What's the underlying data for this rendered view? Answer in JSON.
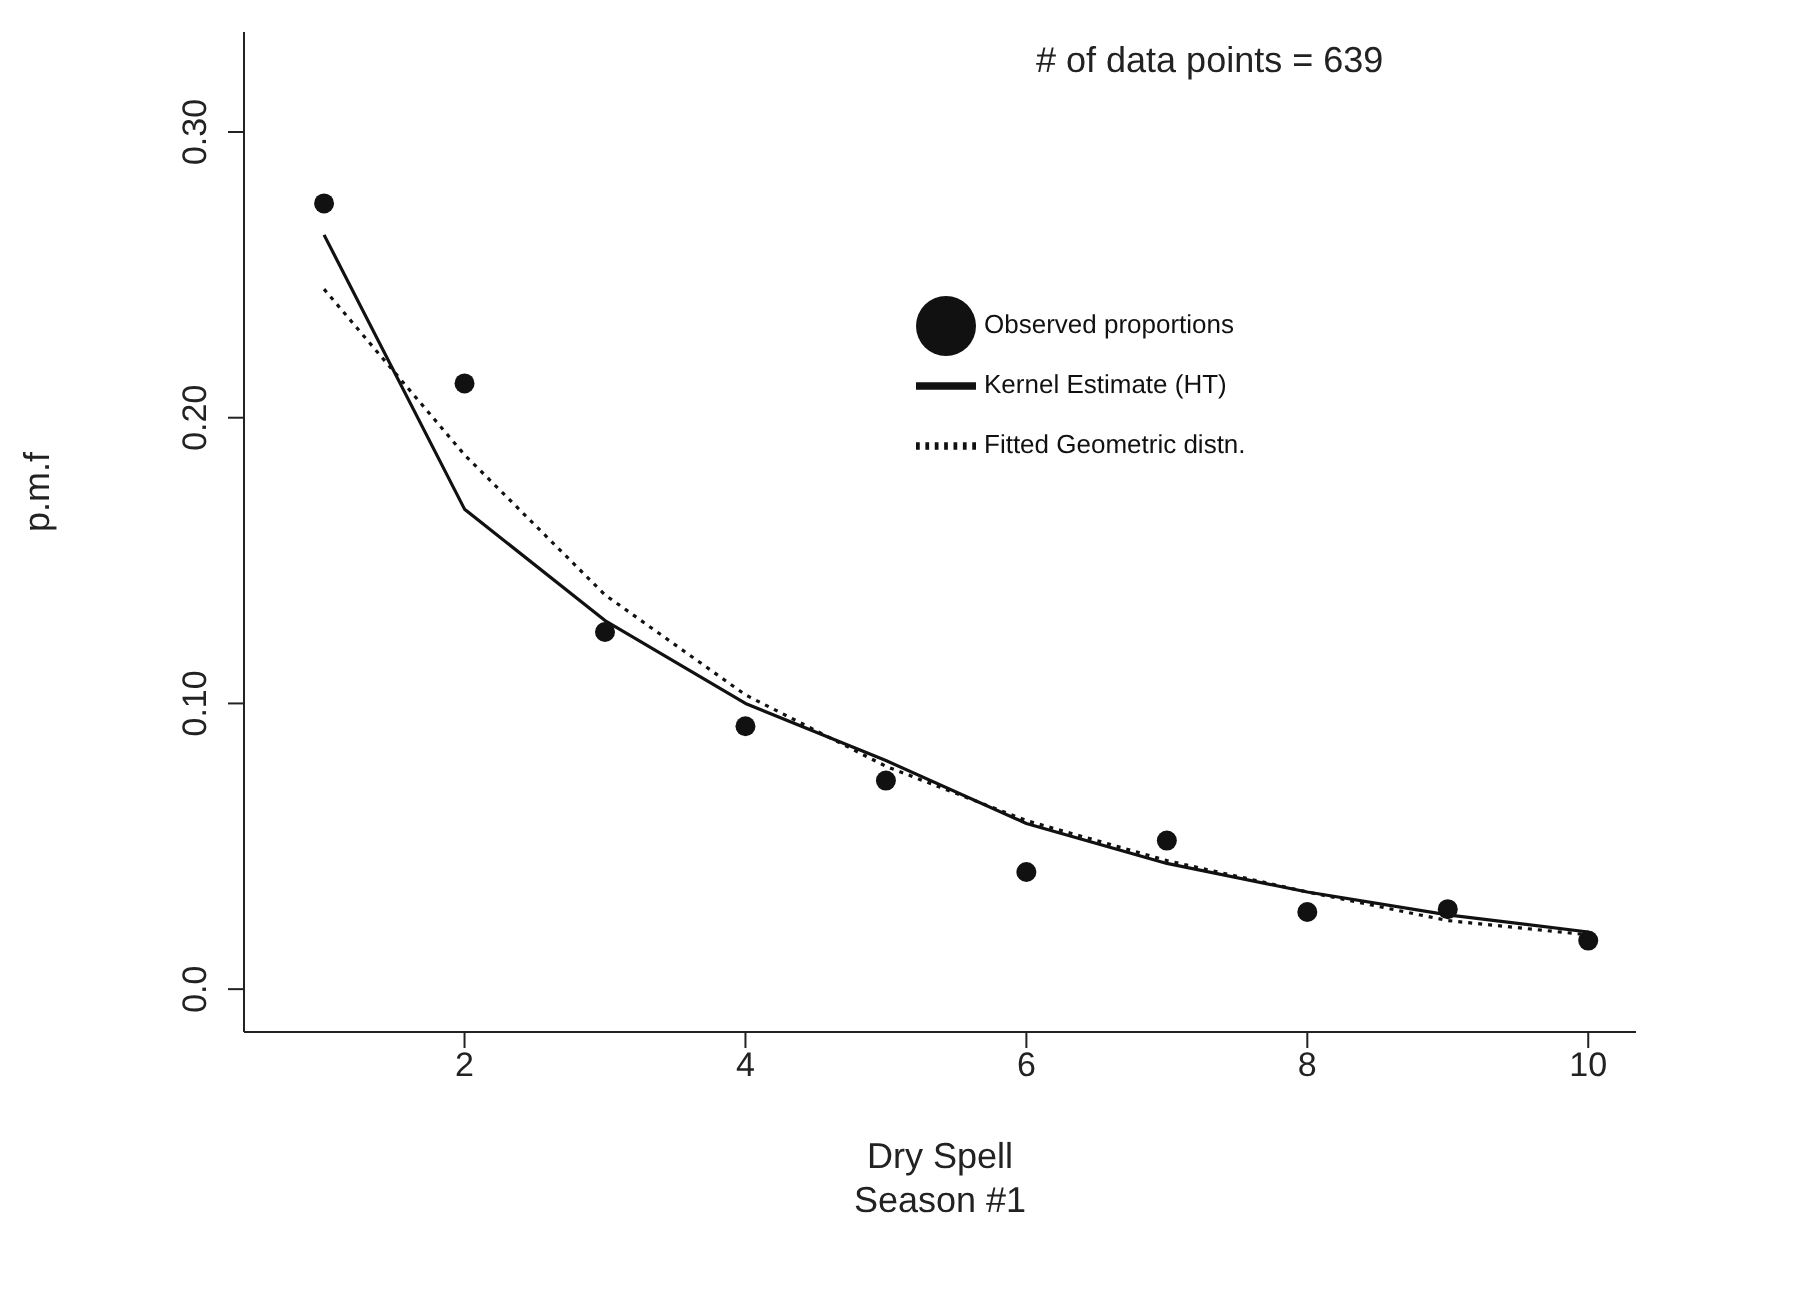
{
  "chart_data": {
    "type": "scatter",
    "xlabel": "Dry Spell\nSeason #1",
    "ylabel": "p.m.f",
    "annotations": [
      "# of data points = 639"
    ],
    "x": [
      1,
      2,
      3,
      4,
      5,
      6,
      7,
      8,
      9,
      10
    ],
    "series": [
      {
        "name": "Observed proportions",
        "type": "scatter",
        "color": "#111111",
        "marker": "circle",
        "values": [
          0.275,
          0.212,
          0.125,
          0.092,
          0.073,
          0.041,
          0.052,
          0.027,
          0.028,
          0.017
        ]
      },
      {
        "name": "Kernel Estimate (HT)",
        "type": "line",
        "color": "#111111",
        "marker": "none",
        "line_style": "solid",
        "values": [
          0.264,
          0.168,
          0.129,
          0.1,
          0.08,
          0.058,
          0.044,
          0.034,
          0.026,
          0.02
        ]
      },
      {
        "name": "Fitted Geometric distn.",
        "type": "line",
        "color": "#111111",
        "marker": "none",
        "line_style": "dotted",
        "values": [
          0.245,
          0.187,
          0.138,
          0.103,
          0.078,
          0.059,
          0.045,
          0.034,
          0.024,
          0.019
        ]
      }
    ],
    "xlim": [
      0.43,
      10.34
    ],
    "xticks": [
      2,
      4,
      6,
      8,
      10
    ],
    "ylim": [
      -0.015,
      0.335
    ],
    "yticks": [
      {
        "value": 0,
        "label": "0.0"
      },
      {
        "value": 0.1,
        "label": "0.10"
      },
      {
        "value": 0.2,
        "label": "0.20"
      },
      {
        "value": 0.3,
        "label": "0.30"
      }
    ],
    "grid": false,
    "legend": "top right"
  }
}
